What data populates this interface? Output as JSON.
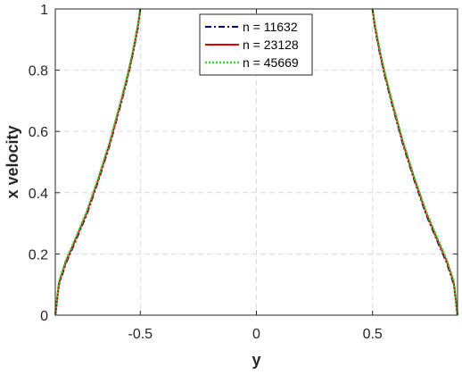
{
  "chart_data": {
    "type": "line",
    "title": "",
    "xlabel": "y",
    "ylabel": "x velocity",
    "xlim": [
      -0.866,
      0.866
    ],
    "ylim": [
      0,
      1
    ],
    "xticks": [
      -0.5,
      0,
      0.5
    ],
    "xtick_labels": [
      "-0.5",
      "0",
      "0.5"
    ],
    "yticks": [
      0,
      0.2,
      0.4,
      0.6,
      0.8,
      1
    ],
    "ytick_labels": [
      "0",
      "0.2",
      "0.4",
      "0.6",
      "0.8",
      "1"
    ],
    "grid": true,
    "legend_position": "top-center",
    "series": [
      {
        "name": "n = 11632",
        "color": "#00008b",
        "style": "dashdot",
        "left_branch": {
          "x": [
            -0.866,
            -0.85,
            -0.82,
            -0.78,
            -0.73,
            -0.68,
            -0.63,
            -0.58,
            -0.55,
            -0.53,
            -0.51,
            -0.5
          ],
          "y": [
            0,
            0.1,
            0.17,
            0.24,
            0.33,
            0.44,
            0.56,
            0.7,
            0.79,
            0.86,
            0.94,
            1
          ]
        },
        "right_branch": {
          "x": [
            0.5,
            0.51,
            0.53,
            0.55,
            0.58,
            0.63,
            0.68,
            0.73,
            0.78,
            0.82,
            0.85,
            0.866
          ],
          "y": [
            1,
            0.94,
            0.86,
            0.79,
            0.7,
            0.56,
            0.44,
            0.33,
            0.24,
            0.17,
            0.1,
            0
          ]
        }
      },
      {
        "name": "n = 23128",
        "color": "#d90000",
        "style": "solid",
        "left_branch": {
          "x": [
            -0.866,
            -0.85,
            -0.82,
            -0.78,
            -0.73,
            -0.68,
            -0.63,
            -0.58,
            -0.55,
            -0.53,
            -0.51,
            -0.5
          ],
          "y": [
            0,
            0.105,
            0.175,
            0.245,
            0.335,
            0.445,
            0.565,
            0.705,
            0.795,
            0.865,
            0.945,
            1
          ]
        },
        "right_branch": {
          "x": [
            0.5,
            0.51,
            0.53,
            0.55,
            0.58,
            0.63,
            0.68,
            0.73,
            0.78,
            0.82,
            0.85,
            0.866
          ],
          "y": [
            1,
            0.945,
            0.865,
            0.795,
            0.705,
            0.565,
            0.445,
            0.335,
            0.245,
            0.175,
            0.105,
            0
          ]
        }
      },
      {
        "name": "n = 45669",
        "color": "#33d633",
        "style": "dotted",
        "left_branch": {
          "x": [
            -0.866,
            -0.85,
            -0.82,
            -0.78,
            -0.73,
            -0.68,
            -0.63,
            -0.58,
            -0.55,
            -0.53,
            -0.51,
            -0.5
          ],
          "y": [
            0,
            0.11,
            0.18,
            0.25,
            0.34,
            0.45,
            0.57,
            0.71,
            0.8,
            0.87,
            0.95,
            1
          ]
        },
        "right_branch": {
          "x": [
            0.5,
            0.51,
            0.53,
            0.55,
            0.58,
            0.63,
            0.68,
            0.73,
            0.78,
            0.82,
            0.85,
            0.866
          ],
          "y": [
            1,
            0.95,
            0.87,
            0.8,
            0.71,
            0.57,
            0.45,
            0.34,
            0.25,
            0.18,
            0.11,
            0
          ]
        }
      }
    ]
  }
}
